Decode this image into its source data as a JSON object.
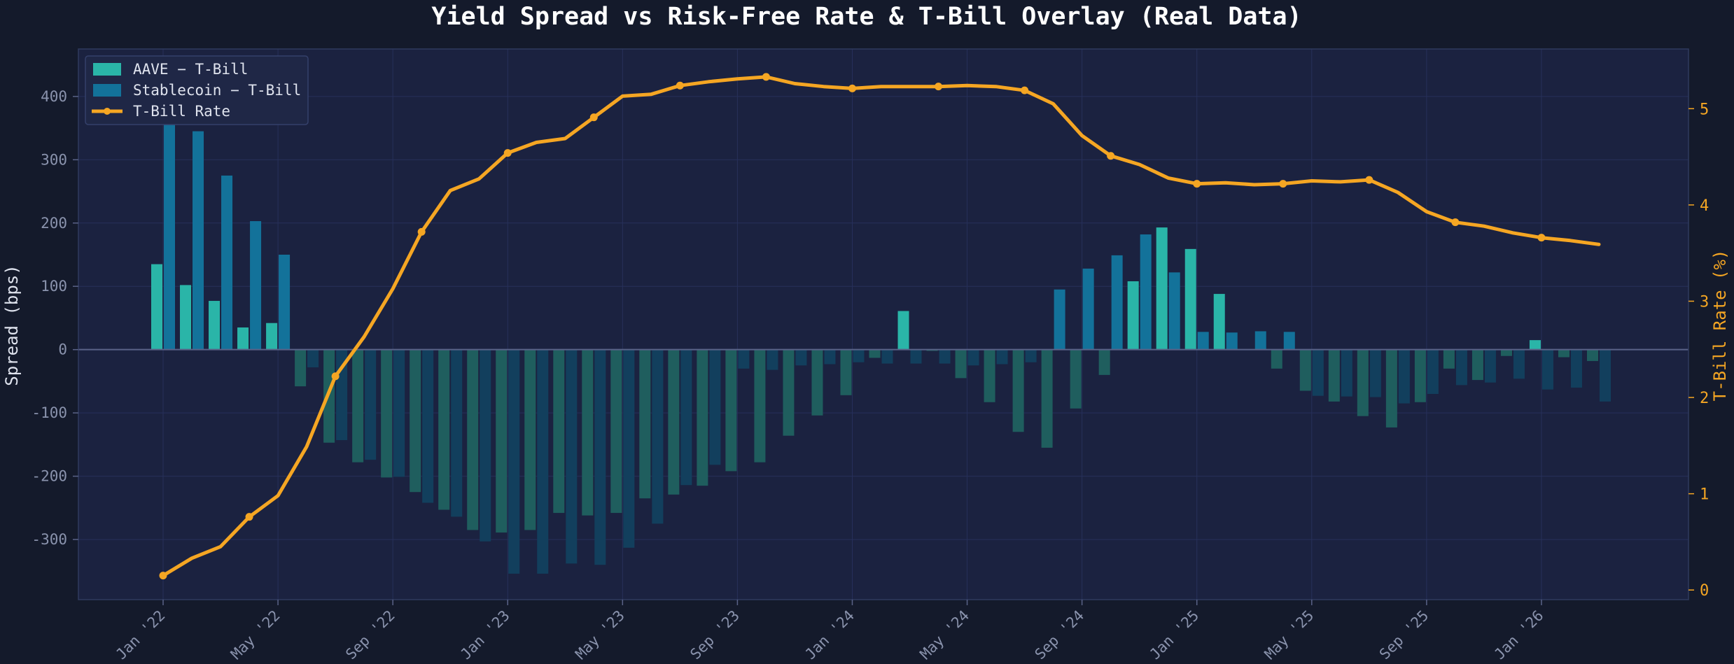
{
  "chart_data": {
    "type": "bar+line",
    "title": "Yield Spread vs Risk-Free Rate & T-Bill Overlay (Real Data)",
    "xlabel": "",
    "ylabel": "Spread (bps)",
    "ylabel_right": "T-Bill Rate (%)",
    "ylim": [
      -395,
      475
    ],
    "ylim_right": [
      -0.1,
      5.62
    ],
    "yticks": [
      -300,
      -200,
      -100,
      0,
      100,
      200,
      300,
      400
    ],
    "yticks_right": [
      0,
      1,
      2,
      3,
      4,
      5
    ],
    "grid": true,
    "legend_position": "top-left",
    "x_ticks": [
      "Jan '22",
      "May '22",
      "Sep '22",
      "Jan '23",
      "May '23",
      "Sep '23",
      "Jan '24",
      "May '24",
      "Sep '24",
      "Jan '25",
      "May '25",
      "Sep '25",
      "Jan '26"
    ],
    "categories": [
      "2022-01",
      "2022-02",
      "2022-03",
      "2022-04",
      "2022-05",
      "2022-06",
      "2022-07",
      "2022-08",
      "2022-09",
      "2022-10",
      "2022-11",
      "2022-12",
      "2023-01",
      "2023-02",
      "2023-03",
      "2023-04",
      "2023-05",
      "2023-06",
      "2023-07",
      "2023-08",
      "2023-09",
      "2023-10",
      "2023-11",
      "2023-12",
      "2024-01",
      "2024-02",
      "2024-03",
      "2024-04",
      "2024-05",
      "2024-06",
      "2024-07",
      "2024-08",
      "2024-09",
      "2024-10",
      "2024-11",
      "2024-12",
      "2025-01",
      "2025-02",
      "2025-03",
      "2025-04",
      "2025-05",
      "2025-06",
      "2025-07",
      "2025-08",
      "2025-09",
      "2025-10",
      "2025-11",
      "2025-12",
      "2026-01",
      "2026-02",
      "2026-03",
      "2026-04"
    ],
    "series": [
      {
        "name": "AAVE − T-Bill",
        "type": "bar",
        "color": "#2ab5a8",
        "negative_color": "#1f5e5e",
        "values": [
          135,
          102,
          77,
          35,
          42,
          -58,
          -147,
          -178,
          -202,
          -225,
          -253,
          -285,
          -289,
          -285,
          -258,
          -262,
          -258,
          -235,
          -229,
          -215,
          -192,
          -178,
          -136,
          -104,
          -72,
          -13,
          61,
          -2,
          -45,
          -83,
          -130,
          -155,
          -93,
          -40,
          108,
          193,
          159,
          88,
          0,
          -30,
          -65,
          -82,
          -105,
          -123,
          -83,
          -30,
          -48,
          -10,
          15,
          -12,
          -18,
          null
        ]
      },
      {
        "name": "Stablecoin − T-Bill",
        "type": "bar",
        "color": "#13729a",
        "negative_color": "#123f5d",
        "values": [
          355,
          345,
          275,
          203,
          150,
          -28,
          -143,
          -174,
          -201,
          -242,
          -264,
          -303,
          -354,
          -354,
          -338,
          -340,
          -313,
          -275,
          -214,
          -182,
          -30,
          -32,
          -25,
          -23,
          -20,
          -22,
          -22,
          -22,
          -25,
          -23,
          -20,
          95,
          128,
          149,
          182,
          122,
          28,
          27,
          29,
          28,
          -73,
          -74,
          -75,
          -85,
          -70,
          -56,
          -52,
          -46,
          -63,
          -60,
          -82,
          null
        ]
      },
      {
        "name": "T-Bill Rate",
        "type": "line",
        "color": "#f5a623",
        "values": [
          0.15,
          0.33,
          0.45,
          0.76,
          0.98,
          1.49,
          2.22,
          2.63,
          3.13,
          3.72,
          4.15,
          4.27,
          4.54,
          4.65,
          4.69,
          4.91,
          5.13,
          5.15,
          5.24,
          5.28,
          5.31,
          5.33,
          5.26,
          5.23,
          5.21,
          5.23,
          5.23,
          5.23,
          5.24,
          5.23,
          5.19,
          5.05,
          4.72,
          4.51,
          4.42,
          4.28,
          4.22,
          4.23,
          4.21,
          4.22,
          4.25,
          4.24,
          4.26,
          4.13,
          3.93,
          3.82,
          3.78,
          3.71,
          3.66,
          3.63,
          3.59,
          null
        ],
        "markers_every": 3
      }
    ]
  }
}
